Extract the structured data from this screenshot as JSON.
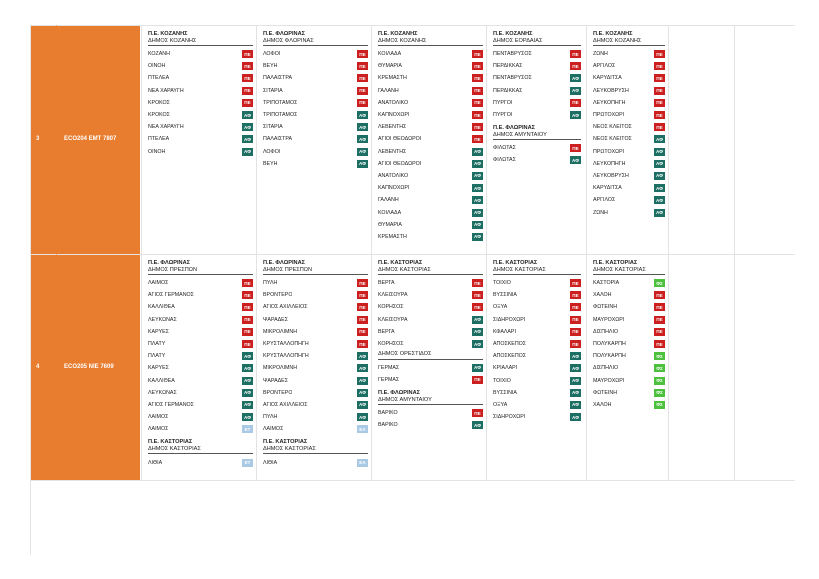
{
  "colors": {
    "orange": "#e87d2f",
    "PE": "#cc1f1f",
    "AD": "#1e6f63",
    "ET": "#a9c9e4",
    "EA": "#a9c9e4",
    "FE": "#4dc13e"
  },
  "rows": [
    {
      "num": "3",
      "code": "ECO204  EMT 7807",
      "columns": [
        {
          "groups": [
            {
              "title": "Π.Ε. ΚΟΖΑΝΗΣ",
              "subtitle": "ΔΗΜΟΣ ΚΟΖΑΝΗΣ",
              "items": [
                {
                  "name": "ΚΟΖΑΝΗ",
                  "tag": "ΠΕ"
                },
                {
                  "name": "ΟΙΝΟΗ",
                  "tag": "ΠΕ"
                },
                {
                  "name": "ΠΤΕΛΕΑ",
                  "tag": "ΠΕ"
                },
                {
                  "name": "ΝΕΑ ΧΑΡΑΥΓΗ",
                  "tag": "ΠΕ"
                },
                {
                  "name": "ΚΡΟΚΟΣ",
                  "tag": "ΠΕ"
                },
                {
                  "name": "ΚΡΟΚΟΣ",
                  "tag": "ΑΦ"
                },
                {
                  "name": "ΝΕΑ ΧΑΡΑΥΓΗ",
                  "tag": "ΑΦ"
                },
                {
                  "name": "ΠΤΕΛΕΑ",
                  "tag": "ΑΦ"
                },
                {
                  "name": "ΟΙΝΟΗ",
                  "tag": "ΑΦ"
                }
              ]
            }
          ]
        },
        {
          "groups": [
            {
              "title": "Π.Ε. ΦΛΩΡΙΝΑΣ",
              "subtitle": "ΔΗΜΟΣ ΦΛΩΡΙΝΑΣ",
              "items": [
                {
                  "name": "ΛΟΦΟΙ",
                  "tag": "ΠΕ"
                },
                {
                  "name": "ΒΕΥΗ",
                  "tag": "ΠΕ"
                },
                {
                  "name": "ΠΑΛΑΙΣΤΡΑ",
                  "tag": "ΠΕ"
                },
                {
                  "name": "ΣΙΤΑΡΙΑ",
                  "tag": "ΠΕ"
                },
                {
                  "name": "ΤΡΙΠΟΤΑΜΟΣ",
                  "tag": "ΠΕ"
                },
                {
                  "name": "ΤΡΙΠΟΤΑΜΟΣ",
                  "tag": "ΑΦ"
                },
                {
                  "name": "ΣΙΤΑΡΙΑ",
                  "tag": "ΑΦ"
                },
                {
                  "name": "ΠΑΛΑΙΣΤΡΑ",
                  "tag": "ΑΦ"
                },
                {
                  "name": "ΛΟΦΟΙ",
                  "tag": "ΑΦ"
                },
                {
                  "name": "ΒΕΥΗ",
                  "tag": "ΑΦ"
                }
              ]
            }
          ]
        },
        {
          "groups": [
            {
              "title": "Π.Ε. ΚΟΖΑΝΗΣ",
              "subtitle": "ΔΗΜΟΣ ΚΟΖΑΝΗΣ",
              "items": [
                {
                  "name": "ΚΟΙΛΑΔΑ",
                  "tag": "ΠΕ"
                },
                {
                  "name": "ΘΥΜΑΡΙΑ",
                  "tag": "ΠΕ"
                },
                {
                  "name": "ΚΡΕΜΑΣΤΗ",
                  "tag": "ΠΕ"
                },
                {
                  "name": "ΓΑΛΑΝΗ",
                  "tag": "ΠΕ"
                },
                {
                  "name": "ΑΝΑΤΟΛΙΚΟ",
                  "tag": "ΠΕ"
                },
                {
                  "name": "ΚΑΠΝΟΧΩΡΙ",
                  "tag": "ΠΕ"
                },
                {
                  "name": "ΛΕΒΕΝΤΗΣ",
                  "tag": "ΠΕ"
                },
                {
                  "name": "ΑΓΙΟΙ ΘΕΟΔΩΡΟΙ",
                  "tag": "ΠΕ"
                },
                {
                  "name": "ΛΕΒΕΝΤΗΣ",
                  "tag": "ΑΦ"
                },
                {
                  "name": "ΑΓΙΟΙ ΘΕΟΔΩΡΟΙ",
                  "tag": "ΑΦ"
                },
                {
                  "name": "ΑΝΑΤΟΛΙΚΟ",
                  "tag": "ΑΦ"
                },
                {
                  "name": "ΚΑΠΝΟΧΩΡΙ",
                  "tag": "ΑΦ"
                },
                {
                  "name": "ΓΑΛΑΝΗ",
                  "tag": "ΑΦ"
                },
                {
                  "name": "ΚΟΙΛΑΔΑ",
                  "tag": "ΑΦ"
                },
                {
                  "name": "ΘΥΜΑΡΙΑ",
                  "tag": "ΑΦ"
                },
                {
                  "name": "ΚΡΕΜΑΣΤΗ",
                  "tag": "ΑΦ"
                }
              ]
            }
          ]
        },
        {
          "groups": [
            {
              "title": "Π.Ε. ΚΟΖΑΝΗΣ",
              "subtitle": "ΔΗΜΟΣ ΕΟΡΔΑΙΑΣ",
              "items": [
                {
                  "name": "ΠΕΝΤΑΒΡΥΣΟΣ",
                  "tag": "ΠΕ"
                },
                {
                  "name": "ΠΕΡΔΙΚΚΑΣ",
                  "tag": "ΠΕ"
                },
                {
                  "name": "ΠΕΝΤΑΒΡΥΣΟΣ",
                  "tag": "ΑΦ"
                },
                {
                  "name": "ΠΕΡΔΙΚΚΑΣ",
                  "tag": "ΑΦ"
                },
                {
                  "name": "ΠΥΡΓΟΙ",
                  "tag": "ΠΕ"
                },
                {
                  "name": "ΠΥΡΓΟΙ",
                  "tag": "ΑΦ"
                }
              ]
            },
            {
              "title": "Π.Ε. ΦΛΩΡΙΝΑΣ",
              "subtitle": "ΔΗΜΟΣ ΑΜΥΝΤΑΙΟΥ",
              "items": [
                {
                  "name": "ΦΙΛΩΤΑΣ",
                  "tag": "ΠΕ"
                },
                {
                  "name": "ΦΙΛΩΤΑΣ",
                  "tag": "ΑΦ"
                }
              ]
            }
          ]
        },
        {
          "groups": [
            {
              "title": "Π.Ε. ΚΟΖΑΝΗΣ",
              "subtitle": "ΔΗΜΟΣ ΚΟΖΑΝΗΣ",
              "items": [
                {
                  "name": "ΖΩΝΗ",
                  "tag": "ΠΕ"
                },
                {
                  "name": "ΑΡΓΙΛΟΣ",
                  "tag": "ΠΕ"
                },
                {
                  "name": "ΚΑΡΥΔΙΤΣΑ",
                  "tag": "ΠΕ"
                },
                {
                  "name": "ΛΕΥΚΟΒΡΥΣΗ",
                  "tag": "ΠΕ"
                },
                {
                  "name": "ΛΕΥΚΟΠΗΓΗ",
                  "tag": "ΠΕ"
                },
                {
                  "name": "ΠΡΩΤΟΧΩΡΙ",
                  "tag": "ΠΕ"
                },
                {
                  "name": "ΝΕΟΣ ΚΛΕΙΤΟΣ",
                  "tag": "ΠΕ"
                },
                {
                  "name": "ΝΕΟΣ ΚΛΕΙΤΟΣ",
                  "tag": "ΑΦ"
                },
                {
                  "name": "ΠΡΩΤΟΧΩΡΙ",
                  "tag": "ΑΦ"
                },
                {
                  "name": "ΛΕΥΚΟΠΗΓΗ",
                  "tag": "ΑΦ"
                },
                {
                  "name": "ΛΕΥΚΟΒΡΥΣΗ",
                  "tag": "ΑΦ"
                },
                {
                  "name": "ΚΑΡΥΔΙΤΣΑ",
                  "tag": "ΑΦ"
                },
                {
                  "name": "ΑΡΓΙΛΟΣ",
                  "tag": "ΑΦ"
                },
                {
                  "name": "ΖΩΝΗ",
                  "tag": "ΑΦ"
                }
              ]
            }
          ]
        }
      ]
    },
    {
      "num": "4",
      "code": "ECO205  NIE 7609",
      "columns": [
        {
          "groups": [
            {
              "title": "Π.Ε. ΦΛΩΡΙΝΑΣ",
              "subtitle": "ΔΗΜΟΣ ΠΡΕΣΠΩΝ",
              "items": [
                {
                  "name": "ΛΑΙΜΟΣ",
                  "tag": "ΠΕ"
                },
                {
                  "name": "ΑΓΙΟΣ ΓΕΡΜΑΝΟΣ",
                  "tag": "ΠΕ"
                },
                {
                  "name": "ΚΑΛΛΙΘΕΑ",
                  "tag": "ΠΕ"
                },
                {
                  "name": "ΛΕΥΚΩΝΑΣ",
                  "tag": "ΠΕ"
                },
                {
                  "name": "ΚΑΡΥΕΣ",
                  "tag": "ΠΕ"
                },
                {
                  "name": "ΠΛΑΤΥ",
                  "tag": "ΠΕ"
                },
                {
                  "name": "ΠΛΑΤΥ",
                  "tag": "ΑΦ"
                },
                {
                  "name": "ΚΑΡΥΕΣ",
                  "tag": "ΑΦ"
                },
                {
                  "name": "ΚΑΛΛΙΘΕΑ",
                  "tag": "ΑΦ"
                },
                {
                  "name": "ΛΕΥΚΩΝΑΣ",
                  "tag": "ΑΦ"
                },
                {
                  "name": "ΑΓΙΟΣ ΓΕΡΜΑΝΟΣ",
                  "tag": "ΑΦ"
                },
                {
                  "name": "ΛΑΙΜΟΣ",
                  "tag": "ΑΦ"
                },
                {
                  "name": "ΛΑΙΜΟΣ",
                  "tag": "ΕΤ"
                }
              ]
            },
            {
              "title": "Π.Ε. ΚΑΣΤΟΡΙΑΣ",
              "subtitle": "ΔΗΜΟΣ ΚΑΣΤΟΡΙΑΣ",
              "items": [
                {
                  "name": "ΛΙΘΙΑ",
                  "tag": "ΕΤ"
                }
              ]
            }
          ]
        },
        {
          "groups": [
            {
              "title": "Π.Ε. ΦΛΩΡΙΝΑΣ",
              "subtitle": "ΔΗΜΟΣ ΠΡΕΣΠΩΝ",
              "items": [
                {
                  "name": "ΠΥΛΗ",
                  "tag": "ΠΕ"
                },
                {
                  "name": "ΒΡΟΝΤΕΡΟ",
                  "tag": "ΠΕ"
                },
                {
                  "name": "ΑΓΙΟΣ ΑΧΙΛΛΕΙΟΣ",
                  "tag": "ΠΕ"
                },
                {
                  "name": "ΨΑΡΑΔΕΣ",
                  "tag": "ΠΕ"
                },
                {
                  "name": "ΜΙΚΡΟΛΙΜΝΗ",
                  "tag": "ΠΕ"
                },
                {
                  "name": "ΚΡΥΣΤΑΛΛΟΠΗΓΗ",
                  "tag": "ΠΕ"
                },
                {
                  "name": "ΚΡΥΣΤΑΛΛΟΠΗΓΗ",
                  "tag": "ΑΦ"
                },
                {
                  "name": "ΜΙΚΡΟΛΙΜΝΗ",
                  "tag": "ΑΦ"
                },
                {
                  "name": "ΨΑΡΑΔΕΣ",
                  "tag": "ΑΦ"
                },
                {
                  "name": "ΒΡΟΝΤΕΡΟ",
                  "tag": "ΑΦ"
                },
                {
                  "name": "ΑΓΙΟΣ ΑΧΙΛΛΕΙΟΣ",
                  "tag": "ΑΦ"
                },
                {
                  "name": "ΠΥΛΗ",
                  "tag": "ΑΦ"
                },
                {
                  "name": "ΛΑΙΜΟΣ",
                  "tag": "ΕΑ"
                }
              ]
            },
            {
              "title": "Π.Ε. ΚΑΣΤΟΡΙΑΣ",
              "subtitle": "ΔΗΜΟΣ ΚΑΣΤΟΡΙΑΣ",
              "items": [
                {
                  "name": "ΛΙΘΙΑ",
                  "tag": "ΕΑ"
                }
              ]
            }
          ]
        },
        {
          "groups": [
            {
              "title": "Π.Ε. ΚΑΣΤΟΡΙΑΣ",
              "subtitle": "ΔΗΜΟΣ ΚΑΣΤΟΡΙΑΣ",
              "items": [
                {
                  "name": "ΒΕΡΓΑ",
                  "tag": "ΠΕ"
                },
                {
                  "name": "ΚΛΕΙΣΟΥΡΑ",
                  "tag": "ΠΕ"
                },
                {
                  "name": "ΚΟΡΗΣΟΣ",
                  "tag": "ΠΕ"
                },
                {
                  "name": "ΚΛΕΙΣΟΥΡΑ",
                  "tag": "ΑΦ"
                },
                {
                  "name": "ΒΕΡΓΑ",
                  "tag": "ΑΦ"
                },
                {
                  "name": "ΚΟΡΗΣΟΣ",
                  "tag": "ΑΦ"
                }
              ],
              "subgroup": {
                "subtitle": "ΔΗΜΟΣ ΟΡΕΣΤΙΔΟΣ",
                "items": [
                  {
                    "name": "ΓΕΡΜΑΣ",
                    "tag": "ΑΦ"
                  },
                  {
                    "name": "ΓΕΡΜΑΣ",
                    "tag": "ΠΕ"
                  }
                ]
              }
            },
            {
              "title": "Π.Ε. ΦΛΩΡΙΝΑΣ",
              "subtitle": "ΔΗΜΟΣ ΑΜΥΝΤΑΙΟΥ",
              "items": [
                {
                  "name": "ΒΑΡΙΚΟ",
                  "tag": "ΠΕ"
                },
                {
                  "name": "ΒΑΡΙΚΟ",
                  "tag": "ΑΦ"
                }
              ]
            }
          ]
        },
        {
          "groups": [
            {
              "title": "Π.Ε. ΚΑΣΤΟΡΙΑΣ",
              "subtitle": "ΔΗΜΟΣ ΚΑΣΤΟΡΙΑΣ",
              "items": [
                {
                  "name": "ΤΟΙΧΙΟ",
                  "tag": "ΠΕ"
                },
                {
                  "name": "ΒΥΣΣΙΝΙΑ",
                  "tag": "ΠΕ"
                },
                {
                  "name": "ΟΞΥΑ",
                  "tag": "ΠΕ"
                },
                {
                  "name": "ΣΙΔΗΡΟΧΩΡΙ",
                  "tag": "ΠΕ"
                },
                {
                  "name": "ΚΦΑΛΑΡΙ",
                  "tag": "ΠΕ"
                },
                {
                  "name": "ΑΠΟΣΚΕΠΟΣ",
                  "tag": "ΠΕ"
                },
                {
                  "name": "ΑΠΟΣΚΕΠΟΣ",
                  "tag": "ΑΦ"
                },
                {
                  "name": "ΚΡΙΑΛΑΡΙ",
                  "tag": "ΑΦ"
                },
                {
                  "name": "ΤΟΙΧΙΟ",
                  "tag": "ΑΦ"
                },
                {
                  "name": "ΒΥΣΣΙΝΙΑ",
                  "tag": "ΑΦ"
                },
                {
                  "name": "ΟΞΥΑ",
                  "tag": "ΑΦ"
                },
                {
                  "name": "ΣΙΔΗΡΟΧΩΡΙ",
                  "tag": "ΑΦ"
                }
              ]
            }
          ]
        },
        {
          "groups": [
            {
              "title": "Π.Ε. ΚΑΣΤΟΡΙΑΣ",
              "subtitle": "ΔΗΜΟΣ ΚΑΣΤΟΡΙΑΣ",
              "items": [
                {
                  "name": "ΚΑΣΤΟΡΙΑ",
                  "tag": "ΦΣ"
                },
                {
                  "name": "ΧΑΛΟΗ",
                  "tag": "ΠΕ"
                },
                {
                  "name": "ΦΩΤΕΙΝΗ",
                  "tag": "ΠΕ"
                },
                {
                  "name": "ΜΑΥΡΟΧΩΡΙ",
                  "tag": "ΠΕ"
                },
                {
                  "name": "ΔΙΣΠΗΛΙΟ",
                  "tag": "ΠΕ"
                },
                {
                  "name": "ΠΟΛΥΚΑΡΠΗ",
                  "tag": "ΠΕ"
                },
                {
                  "name": "ΠΟΛΥΚΑΡΠΗ",
                  "tag": "ΦΣ"
                },
                {
                  "name": "ΔΙΣΠΗΛΙΟ",
                  "tag": "ΦΣ"
                },
                {
                  "name": "ΜΑΥΡΟΧΩΡΙ",
                  "tag": "ΦΣ"
                },
                {
                  "name": "ΦΩΤΕΙΝΗ",
                  "tag": "ΦΣ"
                },
                {
                  "name": "ΧΑΛΟΗ",
                  "tag": "ΦΣ"
                }
              ]
            }
          ]
        }
      ]
    }
  ]
}
